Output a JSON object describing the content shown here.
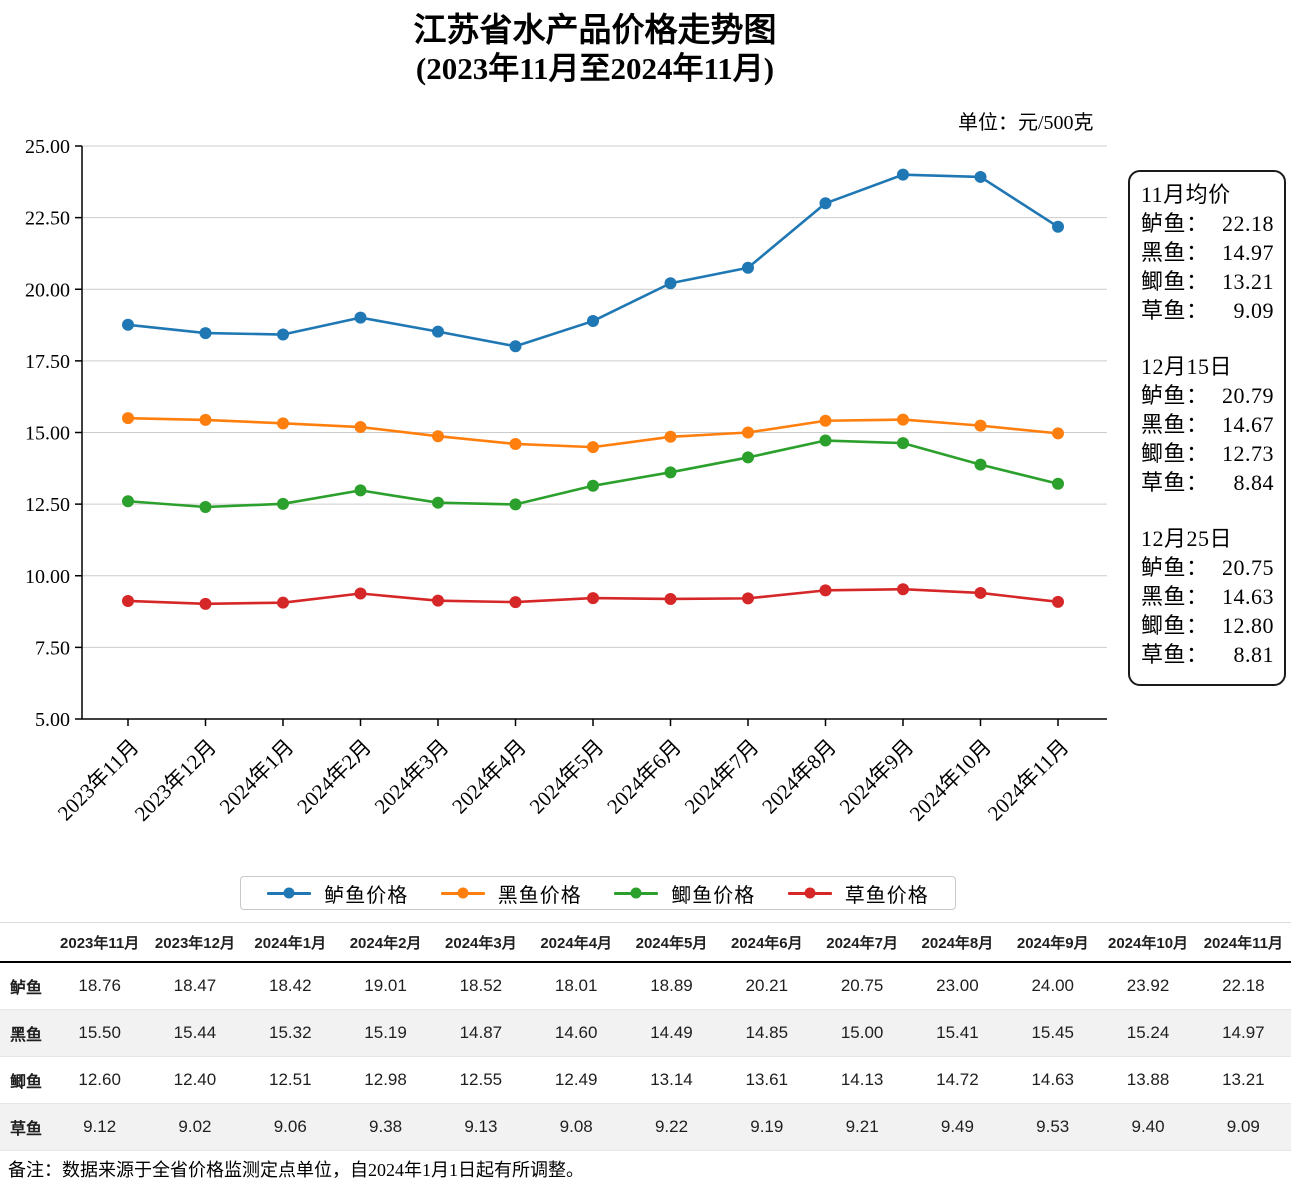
{
  "title": {
    "line1": "江苏省水产品价格走势图",
    "line2": "(2023年11月至2024年11月)"
  },
  "unit_label": "单位：元/500克",
  "chart_data": {
    "type": "line",
    "title": "江苏省水产品价格走势图(2023年11月至2024年11月)",
    "unit": "元/500克",
    "categories": [
      "2023年11月",
      "2023年12月",
      "2024年1月",
      "2024年2月",
      "2024年3月",
      "2024年4月",
      "2024年5月",
      "2024年6月",
      "2024年7月",
      "2024年8月",
      "2024年9月",
      "2024年10月",
      "2024年11月"
    ],
    "series": [
      {
        "name": "鲈鱼价格",
        "color": "#1f77b4",
        "values": [
          18.76,
          18.47,
          18.42,
          19.01,
          18.52,
          18.01,
          18.89,
          20.21,
          20.75,
          23.0,
          24.0,
          23.92,
          22.18
        ]
      },
      {
        "name": "黑鱼价格",
        "color": "#ff7f0e",
        "values": [
          15.5,
          15.44,
          15.32,
          15.19,
          14.87,
          14.6,
          14.49,
          14.85,
          15.0,
          15.41,
          15.45,
          15.24,
          14.97
        ]
      },
      {
        "name": "鲫鱼价格",
        "color": "#2ca02c",
        "values": [
          12.6,
          12.4,
          12.51,
          12.98,
          12.55,
          12.49,
          13.14,
          13.61,
          14.13,
          14.72,
          14.63,
          13.88,
          13.21
        ]
      },
      {
        "name": "草鱼价格",
        "color": "#d62728",
        "values": [
          9.12,
          9.02,
          9.06,
          9.38,
          9.13,
          9.08,
          9.22,
          9.19,
          9.21,
          9.49,
          9.53,
          9.4,
          9.09
        ]
      }
    ],
    "ylim": [
      5,
      25
    ],
    "ytick_labels": [
      "5.00",
      "7.50",
      "10.00",
      "12.50",
      "15.00",
      "17.50",
      "20.00",
      "22.50",
      "25.00"
    ],
    "grid": "horizontal",
    "legend_position": "bottom"
  },
  "stats_panel": {
    "sections": [
      {
        "heading": "11月均价",
        "items": [
          {
            "label": "鲈鱼：",
            "value": "22.18"
          },
          {
            "label": "黑鱼：",
            "value": "14.97"
          },
          {
            "label": "鲫鱼：",
            "value": "13.21"
          },
          {
            "label": "草鱼：",
            "value": "9.09"
          }
        ]
      },
      {
        "heading": "12月15日",
        "items": [
          {
            "label": "鲈鱼：",
            "value": "20.79"
          },
          {
            "label": "黑鱼：",
            "value": "14.67"
          },
          {
            "label": "鲫鱼：",
            "value": "12.73"
          },
          {
            "label": "草鱼：",
            "value": "8.84"
          }
        ]
      },
      {
        "heading": "12月25日",
        "items": [
          {
            "label": "鲈鱼：",
            "value": "20.75"
          },
          {
            "label": "黑鱼：",
            "value": "14.63"
          },
          {
            "label": "鲫鱼：",
            "value": "12.80"
          },
          {
            "label": "草鱼：",
            "value": "8.81"
          }
        ]
      }
    ]
  },
  "legend": {
    "items": [
      {
        "label": "鲈鱼价格",
        "color": "#1f77b4"
      },
      {
        "label": "黑鱼价格",
        "color": "#ff7f0e"
      },
      {
        "label": "鲫鱼价格",
        "color": "#2ca02c"
      },
      {
        "label": "草鱼价格",
        "color": "#d62728"
      }
    ]
  },
  "table": {
    "corner": "",
    "columns": [
      "2023年11月",
      "2023年12月",
      "2024年1月",
      "2024年2月",
      "2024年3月",
      "2024年4月",
      "2024年5月",
      "2024年6月",
      "2024年7月",
      "2024年8月",
      "2024年9月",
      "2024年10月",
      "2024年11月"
    ],
    "rows": [
      {
        "label": "鲈鱼",
        "values": [
          "18.76",
          "18.47",
          "18.42",
          "19.01",
          "18.52",
          "18.01",
          "18.89",
          "20.21",
          "20.75",
          "23.00",
          "24.00",
          "23.92",
          "22.18"
        ]
      },
      {
        "label": "黑鱼",
        "values": [
          "15.50",
          "15.44",
          "15.32",
          "15.19",
          "14.87",
          "14.60",
          "14.49",
          "14.85",
          "15.00",
          "15.41",
          "15.45",
          "15.24",
          "14.97"
        ]
      },
      {
        "label": "鲫鱼",
        "values": [
          "12.60",
          "12.40",
          "12.51",
          "12.98",
          "12.55",
          "12.49",
          "13.14",
          "13.61",
          "14.13",
          "14.72",
          "14.63",
          "13.88",
          "13.21"
        ]
      },
      {
        "label": "草鱼",
        "values": [
          "9.12",
          "9.02",
          "9.06",
          "9.38",
          "9.13",
          "9.08",
          "9.22",
          "9.19",
          "9.21",
          "9.49",
          "9.53",
          "9.40",
          "9.09"
        ]
      }
    ]
  },
  "footnote": "备注：数据来源于全省价格监测定点单位，自2024年1月1日起有所调整。",
  "colors": {
    "grid": "#cccccc",
    "axis": "#000000"
  }
}
